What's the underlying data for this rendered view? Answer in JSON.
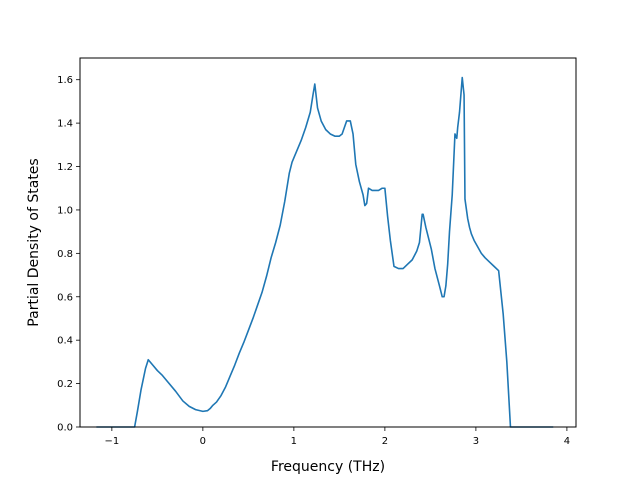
{
  "chart_data": {
    "type": "line",
    "title": "",
    "xlabel": "Frequency (THz)",
    "ylabel": "Partial Density of States",
    "xlim": [
      -1.35,
      4.1
    ],
    "ylim": [
      0.0,
      1.7
    ],
    "xticks": [
      -1,
      0,
      1,
      2,
      3,
      4
    ],
    "xtick_labels": [
      "−1",
      "0",
      "1",
      "2",
      "3",
      "4"
    ],
    "yticks": [
      0.0,
      0.2,
      0.4,
      0.6,
      0.8,
      1.0,
      1.2,
      1.4,
      1.6
    ],
    "ytick_labels": [
      "0.0",
      "0.2",
      "0.4",
      "0.6",
      "0.8",
      "1.0",
      "1.2",
      "1.4",
      "1.6"
    ],
    "grid": false,
    "line_color": "#1f77b4",
    "series": [
      {
        "x": [
          -1.17,
          -0.75,
          -0.72,
          -0.68,
          -0.63,
          -0.6,
          -0.55,
          -0.5,
          -0.45,
          -0.38,
          -0.3,
          -0.22,
          -0.15,
          -0.08,
          0.0,
          0.05,
          0.08,
          0.11,
          0.15,
          0.2,
          0.25,
          0.3,
          0.35,
          0.4,
          0.45,
          0.5,
          0.55,
          0.6,
          0.65,
          0.7,
          0.75,
          0.8,
          0.85,
          0.9,
          0.95,
          0.98,
          1.0,
          1.03,
          1.08,
          1.13,
          1.18,
          1.21,
          1.23,
          1.26,
          1.3,
          1.35,
          1.4,
          1.45,
          1.5,
          1.53,
          1.58,
          1.62,
          1.65,
          1.68,
          1.72,
          1.76,
          1.78,
          1.8,
          1.82,
          1.86,
          1.9,
          1.93,
          1.97,
          2.0,
          2.03,
          2.06,
          2.1,
          2.15,
          2.2,
          2.25,
          2.3,
          2.35,
          2.38,
          2.41,
          2.42,
          2.45,
          2.48,
          2.51,
          2.55,
          2.6,
          2.63,
          2.65,
          2.67,
          2.69,
          2.71,
          2.74,
          2.77,
          2.79,
          2.8,
          2.82,
          2.85,
          2.87,
          2.88,
          2.9,
          2.91,
          2.93,
          2.95,
          2.98,
          3.02,
          3.06,
          3.1,
          3.15,
          3.2,
          3.25,
          3.3,
          3.32,
          3.34,
          3.36,
          3.38,
          3.41,
          3.44,
          3.6,
          3.85
        ],
        "y": [
          0.0,
          0.0,
          0.07,
          0.17,
          0.27,
          0.31,
          0.285,
          0.26,
          0.24,
          0.205,
          0.165,
          0.12,
          0.095,
          0.08,
          0.072,
          0.075,
          0.085,
          0.1,
          0.115,
          0.145,
          0.185,
          0.235,
          0.285,
          0.34,
          0.39,
          0.445,
          0.5,
          0.56,
          0.62,
          0.695,
          0.78,
          0.85,
          0.93,
          1.04,
          1.17,
          1.22,
          1.24,
          1.27,
          1.32,
          1.38,
          1.45,
          1.53,
          1.58,
          1.47,
          1.41,
          1.37,
          1.35,
          1.34,
          1.34,
          1.35,
          1.41,
          1.41,
          1.35,
          1.21,
          1.13,
          1.07,
          1.02,
          1.03,
          1.1,
          1.09,
          1.09,
          1.09,
          1.1,
          1.1,
          0.97,
          0.86,
          0.74,
          0.73,
          0.73,
          0.75,
          0.77,
          0.81,
          0.85,
          0.98,
          0.98,
          0.92,
          0.87,
          0.82,
          0.73,
          0.65,
          0.6,
          0.6,
          0.65,
          0.75,
          0.9,
          1.07,
          1.35,
          1.33,
          1.38,
          1.45,
          1.61,
          1.53,
          1.05,
          0.99,
          0.96,
          0.92,
          0.89,
          0.86,
          0.83,
          0.8,
          0.78,
          0.76,
          0.74,
          0.72,
          0.52,
          0.41,
          0.3,
          0.15,
          0.0,
          0.0,
          0.0,
          0.0,
          0.0
        ]
      }
    ]
  }
}
